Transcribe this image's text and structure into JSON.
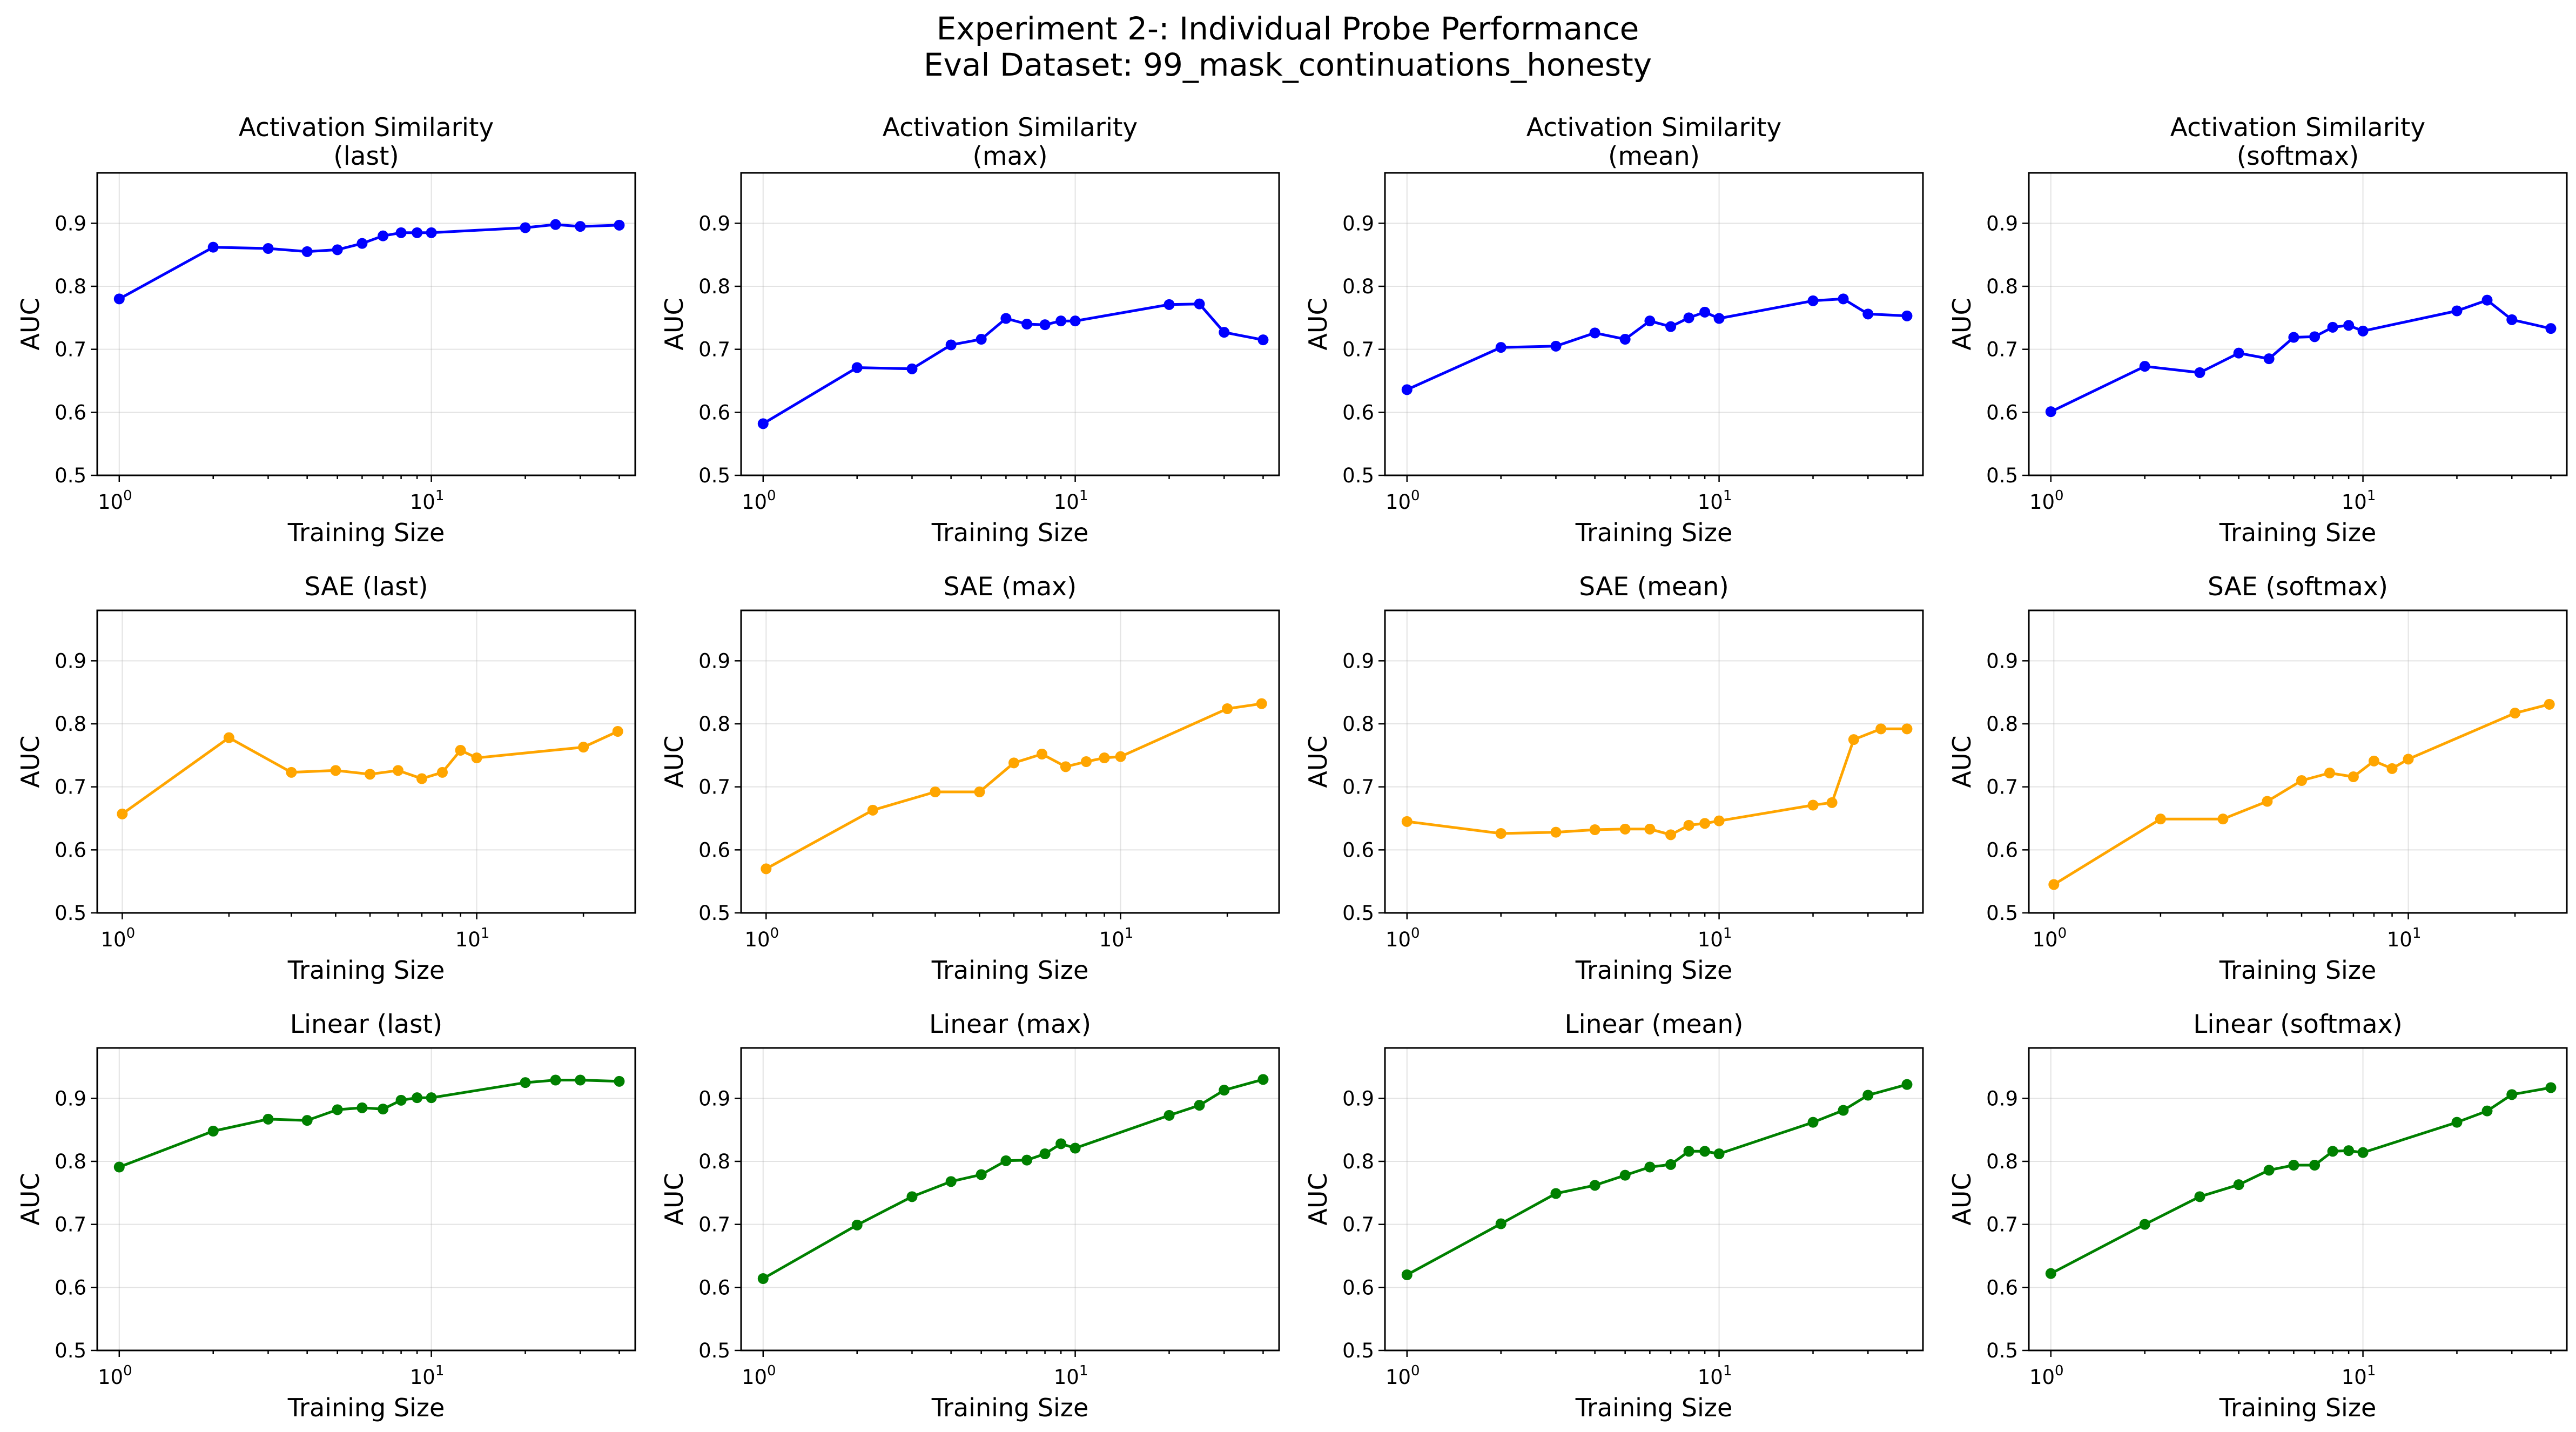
{
  "figure": {
    "title_line1": "Experiment 2-: Individual Probe Performance",
    "title_line2": "Eval Dataset: 99_mask_continuations_honesty"
  },
  "colors": {
    "blue": "#0000ff",
    "orange": "#ffa500",
    "green": "#008000"
  },
  "chart_data": [
    {
      "type": "line",
      "title": [
        "Activation Similarity",
        "(last)"
      ],
      "xlabel": "Training Size",
      "ylabel": "AUC",
      "xscale": "log",
      "xlim": [
        0.85,
        45
      ],
      "ylim": [
        0.5,
        0.98
      ],
      "grid": true,
      "color": "blue",
      "x": [
        1,
        2,
        3,
        4,
        5,
        6,
        7,
        8,
        9,
        10,
        20,
        25,
        30,
        40
      ],
      "y": [
        0.78,
        0.862,
        0.86,
        0.855,
        0.858,
        0.868,
        0.88,
        0.885,
        0.885,
        0.885,
        0.893,
        0.898,
        0.895,
        0.897
      ]
    },
    {
      "type": "line",
      "title": [
        "Activation Similarity",
        "(max)"
      ],
      "xlabel": "Training Size",
      "ylabel": "AUC",
      "xscale": "log",
      "xlim": [
        0.85,
        45
      ],
      "ylim": [
        0.5,
        0.98
      ],
      "grid": true,
      "color": "blue",
      "x": [
        1,
        2,
        3,
        4,
        5,
        6,
        7,
        8,
        9,
        10,
        20,
        25,
        30,
        40
      ],
      "y": [
        0.582,
        0.671,
        0.669,
        0.707,
        0.716,
        0.749,
        0.74,
        0.739,
        0.745,
        0.745,
        0.771,
        0.772,
        0.727,
        0.715
      ]
    },
    {
      "type": "line",
      "title": [
        "Activation Similarity",
        "(mean)"
      ],
      "xlabel": "Training Size",
      "ylabel": "AUC",
      "xscale": "log",
      "xlim": [
        0.85,
        45
      ],
      "ylim": [
        0.5,
        0.98
      ],
      "grid": true,
      "color": "blue",
      "x": [
        1,
        2,
        3,
        4,
        5,
        6,
        7,
        8,
        9,
        10,
        20,
        25,
        30,
        40
      ],
      "y": [
        0.636,
        0.703,
        0.705,
        0.726,
        0.716,
        0.745,
        0.736,
        0.75,
        0.759,
        0.749,
        0.777,
        0.78,
        0.756,
        0.753
      ]
    },
    {
      "type": "line",
      "title": [
        "Activation Similarity",
        "(softmax)"
      ],
      "xlabel": "Training Size",
      "ylabel": "AUC",
      "xscale": "log",
      "xlim": [
        0.85,
        45
      ],
      "ylim": [
        0.5,
        0.98
      ],
      "grid": true,
      "color": "blue",
      "x": [
        1,
        2,
        3,
        4,
        5,
        6,
        7,
        8,
        9,
        10,
        20,
        25,
        30,
        40
      ],
      "y": [
        0.601,
        0.673,
        0.663,
        0.694,
        0.685,
        0.719,
        0.72,
        0.735,
        0.738,
        0.729,
        0.761,
        0.778,
        0.747,
        0.733
      ]
    },
    {
      "type": "line",
      "title": [
        "SAE (last)"
      ],
      "xlabel": "Training Size",
      "ylabel": "AUC",
      "xscale": "log",
      "xlim": [
        0.85,
        28
      ],
      "ylim": [
        0.5,
        0.98
      ],
      "grid": true,
      "color": "orange",
      "x": [
        1,
        2,
        3,
        4,
        5,
        6,
        7,
        8,
        9,
        10,
        20,
        25
      ],
      "y": [
        0.657,
        0.778,
        0.723,
        0.726,
        0.72,
        0.726,
        0.713,
        0.723,
        0.758,
        0.746,
        0.763,
        0.788
      ]
    },
    {
      "type": "line",
      "title": [
        "SAE (max)"
      ],
      "xlabel": "Training Size",
      "ylabel": "AUC",
      "xscale": "log",
      "xlim": [
        0.85,
        28
      ],
      "ylim": [
        0.5,
        0.98
      ],
      "grid": true,
      "color": "orange",
      "x": [
        1,
        2,
        3,
        4,
        5,
        6,
        7,
        8,
        9,
        10,
        20,
        25
      ],
      "y": [
        0.57,
        0.663,
        0.692,
        0.692,
        0.738,
        0.752,
        0.732,
        0.74,
        0.746,
        0.748,
        0.824,
        0.832
      ]
    },
    {
      "type": "line",
      "title": [
        "SAE (mean)"
      ],
      "xlabel": "Training Size",
      "ylabel": "AUC",
      "xscale": "log",
      "xlim": [
        0.85,
        45
      ],
      "ylim": [
        0.5,
        0.98
      ],
      "grid": true,
      "color": "orange",
      "x": [
        1,
        2,
        3,
        4,
        5,
        6,
        7,
        8,
        9,
        10,
        20,
        23,
        27,
        33,
        40
      ],
      "y": [
        0.645,
        0.626,
        0.628,
        0.632,
        0.633,
        0.633,
        0.624,
        0.639,
        0.642,
        0.646,
        0.671,
        0.675,
        0.775,
        0.792,
        0.792
      ]
    },
    {
      "type": "line",
      "title": [
        "SAE (softmax)"
      ],
      "xlabel": "Training Size",
      "ylabel": "AUC",
      "xscale": "log",
      "xlim": [
        0.85,
        28
      ],
      "ylim": [
        0.5,
        0.98
      ],
      "grid": true,
      "color": "orange",
      "x": [
        1,
        2,
        3,
        4,
        5,
        6,
        7,
        8,
        9,
        10,
        20,
        25
      ],
      "y": [
        0.545,
        0.649,
        0.649,
        0.677,
        0.71,
        0.722,
        0.716,
        0.741,
        0.729,
        0.744,
        0.817,
        0.831
      ]
    },
    {
      "type": "line",
      "title": [
        "Linear (last)"
      ],
      "xlabel": "Training Size",
      "ylabel": "AUC",
      "xscale": "log",
      "xlim": [
        0.85,
        45
      ],
      "ylim": [
        0.5,
        0.98
      ],
      "grid": true,
      "color": "green",
      "x": [
        1,
        2,
        3,
        4,
        5,
        6,
        7,
        8,
        9,
        10,
        20,
        25,
        30,
        40
      ],
      "y": [
        0.791,
        0.848,
        0.867,
        0.865,
        0.882,
        0.885,
        0.883,
        0.897,
        0.901,
        0.901,
        0.925,
        0.929,
        0.929,
        0.927
      ]
    },
    {
      "type": "line",
      "title": [
        "Linear (max)"
      ],
      "xlabel": "Training Size",
      "ylabel": "AUC",
      "xscale": "log",
      "xlim": [
        0.85,
        45
      ],
      "ylim": [
        0.5,
        0.98
      ],
      "grid": true,
      "color": "green",
      "x": [
        1,
        2,
        3,
        4,
        5,
        6,
        7,
        8,
        9,
        10,
        20,
        25,
        30,
        40
      ],
      "y": [
        0.614,
        0.699,
        0.744,
        0.768,
        0.779,
        0.801,
        0.802,
        0.812,
        0.828,
        0.821,
        0.873,
        0.889,
        0.913,
        0.93
      ]
    },
    {
      "type": "line",
      "title": [
        "Linear (mean)"
      ],
      "xlabel": "Training Size",
      "ylabel": "AUC",
      "xscale": "log",
      "xlim": [
        0.85,
        45
      ],
      "ylim": [
        0.5,
        0.98
      ],
      "grid": true,
      "color": "green",
      "x": [
        1,
        2,
        3,
        4,
        5,
        6,
        7,
        8,
        9,
        10,
        20,
        25,
        30,
        40
      ],
      "y": [
        0.62,
        0.701,
        0.749,
        0.762,
        0.778,
        0.791,
        0.795,
        0.816,
        0.816,
        0.812,
        0.862,
        0.881,
        0.905,
        0.922
      ]
    },
    {
      "type": "line",
      "title": [
        "Linear (softmax)"
      ],
      "xlabel": "Training Size",
      "ylabel": "AUC",
      "xscale": "log",
      "xlim": [
        0.85,
        45
      ],
      "ylim": [
        0.5,
        0.98
      ],
      "grid": true,
      "color": "green",
      "x": [
        1,
        2,
        3,
        4,
        5,
        6,
        7,
        8,
        9,
        10,
        20,
        25,
        30,
        40
      ],
      "y": [
        0.622,
        0.7,
        0.744,
        0.763,
        0.786,
        0.794,
        0.794,
        0.816,
        0.817,
        0.814,
        0.862,
        0.88,
        0.906,
        0.917
      ]
    }
  ],
  "axis": {
    "y_ticks": [
      0.5,
      0.6,
      0.7,
      0.8,
      0.9
    ],
    "y_tick_labels": [
      "0.5",
      "0.6",
      "0.7",
      "0.8",
      "0.9"
    ],
    "x_major_ticks": [
      1,
      10
    ],
    "x_major_base": "10",
    "x_major_exponents": [
      "0",
      "1"
    ],
    "x_minor_ticks": [
      2,
      3,
      4,
      5,
      6,
      7,
      8,
      9,
      20,
      30,
      40
    ]
  }
}
